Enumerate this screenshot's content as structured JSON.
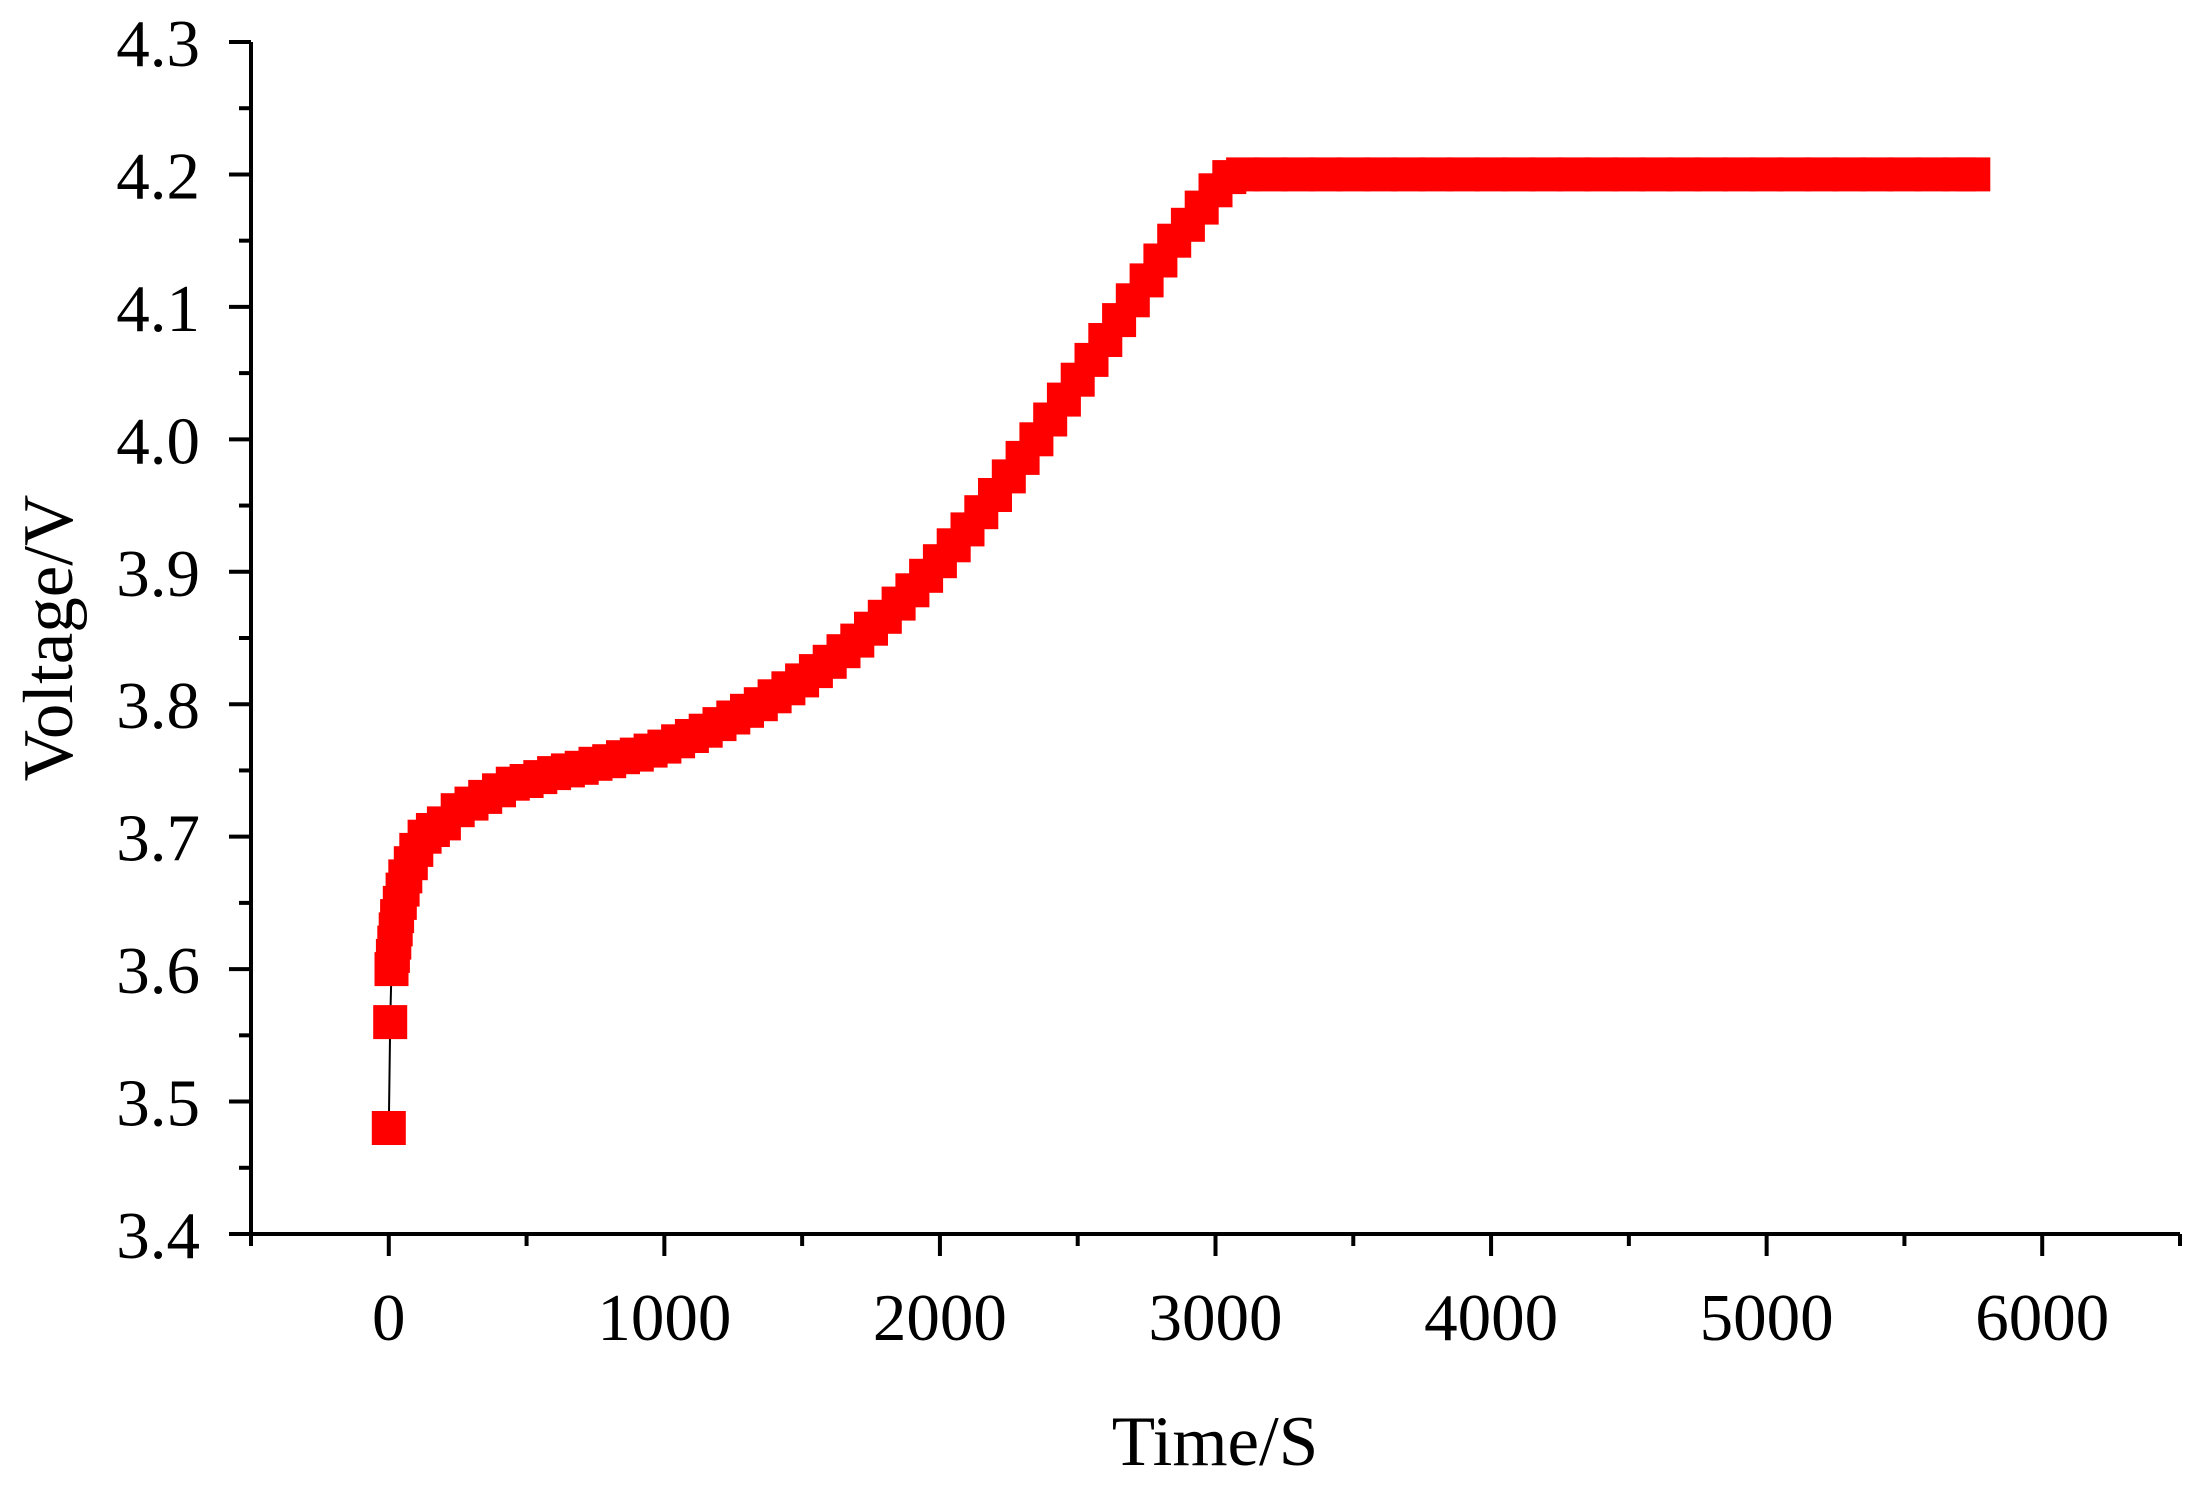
{
  "chart_data": {
    "type": "scatter",
    "title": "",
    "xlabel": "Time/S",
    "ylabel": "Voltage/V",
    "xlim": [
      -500,
      6500
    ],
    "ylim": [
      3.4,
      4.3
    ],
    "x_ticks": [
      "0",
      "1000",
      "2000",
      "3000",
      "4000",
      "5000",
      "6000"
    ],
    "y_ticks": [
      "3.4",
      "3.5",
      "3.6",
      "3.7",
      "3.8",
      "3.9",
      "4.0",
      "4.1",
      "4.2",
      "4.3"
    ],
    "grid": false,
    "legend": "none",
    "marker": "square",
    "series": [
      {
        "color": "#ff0000",
        "line_color": "#000000",
        "x": [
          0,
          5,
          10,
          15,
          20,
          25,
          30,
          40,
          50,
          60,
          80,
          100,
          130,
          160,
          200,
          250,
          300,
          350,
          400,
          450,
          500,
          550,
          600,
          650,
          700,
          750,
          800,
          850,
          900,
          950,
          1000,
          1050,
          1100,
          1150,
          1200,
          1250,
          1300,
          1350,
          1400,
          1450,
          1500,
          1550,
          1600,
          1650,
          1700,
          1750,
          1800,
          1850,
          1900,
          1950,
          2000,
          2050,
          2100,
          2150,
          2200,
          2250,
          2300,
          2350,
          2400,
          2450,
          2500,
          2550,
          2600,
          2650,
          2700,
          2750,
          2800,
          2850,
          2900,
          2950,
          3000,
          3050,
          3100,
          3200,
          3300,
          3400,
          3500,
          3600,
          3700,
          3800,
          3900,
          4000,
          4100,
          4200,
          4300,
          4400,
          4500,
          4600,
          4700,
          4800,
          4900,
          5000,
          5100,
          5200,
          5300,
          5400,
          5500,
          5600,
          5700,
          5750
        ],
        "y": [
          3.48,
          3.56,
          3.6,
          3.61,
          3.62,
          3.63,
          3.64,
          3.65,
          3.66,
          3.67,
          3.68,
          3.69,
          3.7,
          3.705,
          3.71,
          3.72,
          3.725,
          3.73,
          3.735,
          3.74,
          3.742,
          3.745,
          3.748,
          3.75,
          3.752,
          3.755,
          3.757,
          3.76,
          3.762,
          3.765,
          3.768,
          3.772,
          3.776,
          3.78,
          3.785,
          3.79,
          3.795,
          3.8,
          3.806,
          3.812,
          3.818,
          3.825,
          3.832,
          3.84,
          3.848,
          3.857,
          3.866,
          3.876,
          3.886,
          3.897,
          3.908,
          3.92,
          3.932,
          3.945,
          3.958,
          3.972,
          3.986,
          4.0,
          4.015,
          4.03,
          4.045,
          4.06,
          4.075,
          4.09,
          4.105,
          4.12,
          4.135,
          4.15,
          4.162,
          4.175,
          4.188,
          4.198,
          4.2,
          4.2,
          4.2,
          4.2,
          4.2,
          4.2,
          4.2,
          4.2,
          4.2,
          4.2,
          4.2,
          4.2,
          4.2,
          4.2,
          4.2,
          4.2,
          4.2,
          4.2,
          4.2,
          4.2,
          4.2,
          4.2,
          4.2,
          4.2,
          4.2,
          4.2,
          4.2,
          4.2
        ]
      }
    ]
  }
}
